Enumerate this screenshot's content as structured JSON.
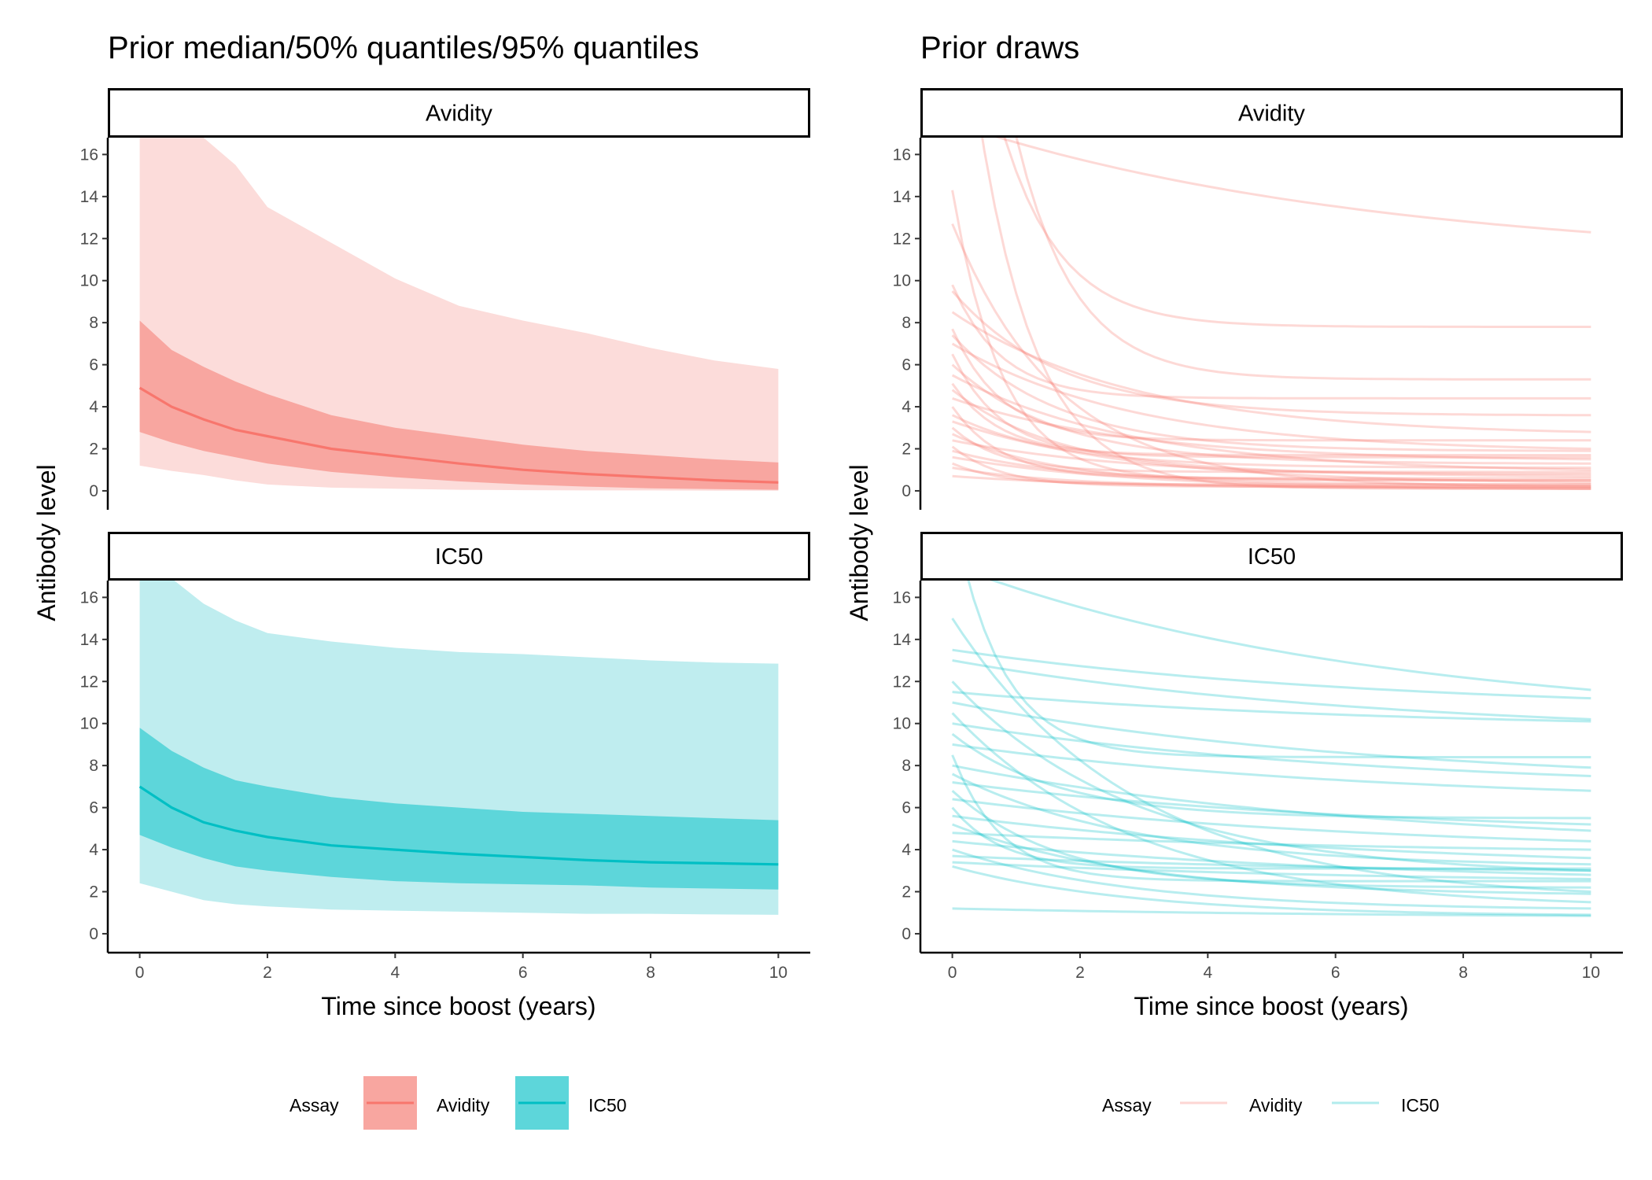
{
  "colors": {
    "avidity": "#F8766D",
    "avidity_band50": "#F8A6A0",
    "avidity_band95": "#FCDCDA",
    "ic50": "#00BFC4",
    "ic50_band50": "#5DD6DA",
    "ic50_band95": "#BFEDEF"
  },
  "chart_data": [
    {
      "type": "area",
      "title": "Prior median/50% quantiles/95% quantiles",
      "xlabel": "Time since boost (years)",
      "ylabel": "Antibody level",
      "xlim": [
        -0.5,
        10.5
      ],
      "ylim": [
        -0.9,
        16.8
      ],
      "x_ticks": [
        0,
        2,
        4,
        6,
        8,
        10
      ],
      "y_ticks": [
        0,
        2,
        4,
        6,
        8,
        10,
        12,
        14,
        16
      ],
      "panels": [
        {
          "label": "Avidity",
          "x": [
            0,
            0.5,
            1,
            1.5,
            2,
            3,
            4,
            5,
            6,
            7,
            8,
            9,
            10
          ],
          "median": [
            4.9,
            4.0,
            3.4,
            2.9,
            2.6,
            2.0,
            1.65,
            1.3,
            1.0,
            0.8,
            0.65,
            0.5,
            0.4
          ],
          "q25": [
            2.8,
            2.3,
            1.9,
            1.6,
            1.3,
            0.9,
            0.65,
            0.45,
            0.3,
            0.2,
            0.12,
            0.08,
            0.05
          ],
          "q75": [
            8.1,
            6.7,
            5.9,
            5.2,
            4.6,
            3.6,
            3.0,
            2.6,
            2.2,
            1.9,
            1.7,
            1.5,
            1.35
          ],
          "q025": [
            1.2,
            0.95,
            0.75,
            0.5,
            0.3,
            0.15,
            0.1,
            0.05,
            0.03,
            0.02,
            0.02,
            0.01,
            0.01
          ],
          "q975": [
            17.5,
            17.0,
            16.8,
            15.5,
            13.5,
            11.8,
            10.1,
            8.8,
            8.1,
            7.5,
            6.8,
            6.2,
            5.8
          ]
        },
        {
          "label": "IC50",
          "x": [
            0,
            0.5,
            1,
            1.5,
            2,
            3,
            4,
            5,
            6,
            7,
            8,
            9,
            10
          ],
          "median": [
            7.0,
            6.0,
            5.3,
            4.9,
            4.6,
            4.2,
            4.0,
            3.8,
            3.65,
            3.5,
            3.4,
            3.35,
            3.3
          ],
          "q25": [
            4.7,
            4.1,
            3.6,
            3.2,
            3.0,
            2.7,
            2.5,
            2.4,
            2.35,
            2.3,
            2.2,
            2.15,
            2.1
          ],
          "q75": [
            9.8,
            8.7,
            7.9,
            7.3,
            7.0,
            6.5,
            6.2,
            6.0,
            5.8,
            5.7,
            5.6,
            5.5,
            5.4
          ],
          "q025": [
            2.4,
            2.0,
            1.6,
            1.4,
            1.3,
            1.15,
            1.1,
            1.05,
            1.0,
            0.95,
            0.95,
            0.92,
            0.9
          ],
          "q975": [
            17.5,
            16.9,
            15.7,
            14.9,
            14.3,
            13.9,
            13.6,
            13.4,
            13.3,
            13.15,
            13.0,
            12.9,
            12.85
          ]
        }
      ],
      "legend": {
        "title": "Assay",
        "position": "bottom",
        "entries": [
          "Avidity",
          "IC50"
        ]
      }
    },
    {
      "type": "line",
      "title": "Prior draws",
      "xlabel": "Time since boost (years)",
      "ylabel": "Antibody level",
      "xlim": [
        -0.5,
        10.5
      ],
      "ylim": [
        -0.9,
        16.8
      ],
      "x_ticks": [
        0,
        2,
        4,
        6,
        8,
        10
      ],
      "y_ticks": [
        0,
        2,
        4,
        6,
        8,
        10,
        12,
        14,
        16
      ],
      "panels": [
        {
          "label": "Avidity",
          "draws": [
            {
              "start": 30,
              "end": 7.8
            },
            {
              "start": 17.5,
              "end": 12.3
            },
            {
              "start": 40,
              "end": 5.3
            },
            {
              "start": 14.3,
              "end": 0.5
            },
            {
              "start": 12.7,
              "end": 0.2
            },
            {
              "start": 28,
              "end": 0.1
            },
            {
              "start": 9.8,
              "end": 4.4
            },
            {
              "start": 9.5,
              "end": 3.6
            },
            {
              "start": 8.5,
              "end": 2.8
            },
            {
              "start": 7.7,
              "end": 2.4
            },
            {
              "start": 7.4,
              "end": 1.9
            },
            {
              "start": 7.0,
              "end": 2.0
            },
            {
              "start": 6.5,
              "end": 1.6
            },
            {
              "start": 6.0,
              "end": 1.3
            },
            {
              "start": 5.5,
              "end": 1.0
            },
            {
              "start": 5.1,
              "end": 1.7
            },
            {
              "start": 4.8,
              "end": 0.8
            },
            {
              "start": 4.4,
              "end": 1.5
            },
            {
              "start": 4.0,
              "end": 0.6
            },
            {
              "start": 3.6,
              "end": 1.1
            },
            {
              "start": 3.3,
              "end": 0.4
            },
            {
              "start": 3.0,
              "end": 0.9
            },
            {
              "start": 2.7,
              "end": 0.3
            },
            {
              "start": 2.4,
              "end": 0.7
            },
            {
              "start": 2.1,
              "end": 0.2
            },
            {
              "start": 1.9,
              "end": 0.5
            },
            {
              "start": 1.6,
              "end": 0.1
            },
            {
              "start": 1.3,
              "end": 0.3
            },
            {
              "start": 1.1,
              "end": 0.2
            },
            {
              "start": 0.7,
              "end": 0.1
            }
          ]
        },
        {
          "label": "IC50",
          "draws": [
            {
              "start": 20,
              "end": 8.4
            },
            {
              "start": 17.5,
              "end": 11.6
            },
            {
              "start": 15.0,
              "end": 2.0
            },
            {
              "start": 13.5,
              "end": 11.2
            },
            {
              "start": 13.0,
              "end": 10.2
            },
            {
              "start": 12.0,
              "end": 3.0
            },
            {
              "start": 11.5,
              "end": 10.1
            },
            {
              "start": 11.0,
              "end": 7.9
            },
            {
              "start": 10.5,
              "end": 1.5
            },
            {
              "start": 10.0,
              "end": 7.5
            },
            {
              "start": 9.5,
              "end": 5.5
            },
            {
              "start": 9.0,
              "end": 6.8
            },
            {
              "start": 8.5,
              "end": 2.5
            },
            {
              "start": 8.0,
              "end": 4.9
            },
            {
              "start": 7.6,
              "end": 3.3
            },
            {
              "start": 7.2,
              "end": 5.2
            },
            {
              "start": 6.8,
              "end": 2.2
            },
            {
              "start": 6.4,
              "end": 4.4
            },
            {
              "start": 6.0,
              "end": 3.1
            },
            {
              "start": 5.6,
              "end": 3.6
            },
            {
              "start": 5.2,
              "end": 1.9
            },
            {
              "start": 4.8,
              "end": 4.0
            },
            {
              "start": 4.4,
              "end": 2.8
            },
            {
              "start": 4.0,
              "end": 1.2
            },
            {
              "start": 3.7,
              "end": 3.0
            },
            {
              "start": 3.4,
              "end": 2.6
            },
            {
              "start": 3.2,
              "end": 0.9
            },
            {
              "start": 1.2,
              "end": 0.85
            }
          ]
        }
      ],
      "legend": {
        "title": "Assay",
        "position": "bottom",
        "entries": [
          "Avidity",
          "IC50"
        ]
      }
    }
  ]
}
